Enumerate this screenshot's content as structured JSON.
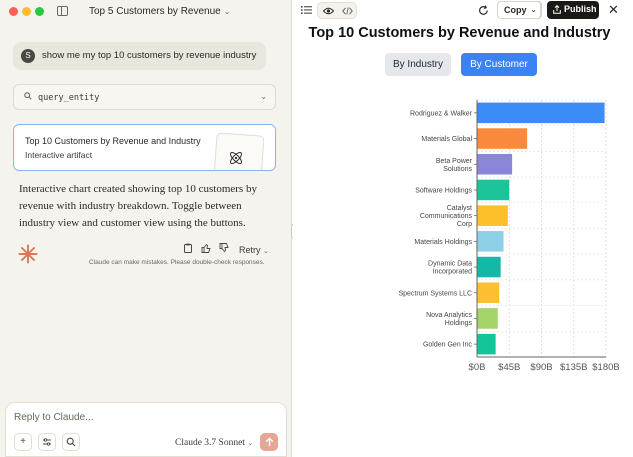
{
  "window": {
    "traffic_lights": [
      "#ff5f57",
      "#febc2e",
      "#28c840"
    ],
    "conversation_title": "Top 5 Customers by Revenue"
  },
  "chat": {
    "user_initial": "S",
    "user_message": "show me my top 10 customers by revenue industry",
    "tool_call": "query_entity",
    "artifact": {
      "title": "Top 10 Customers by Revenue and Industry",
      "subtitle": "Interactive artifact"
    },
    "assistant_message": "Interactive chart created showing top 10 customers by revenue with industry breakdown. Toggle between industry view and customer view using the buttons.",
    "retry_label": "Retry",
    "disclaimer": "Claude can make mistakes. Please double-check responses."
  },
  "composer": {
    "placeholder": "Reply to Claude...",
    "model": "Claude 3.7 Sonnet"
  },
  "artifact_panel": {
    "copy_label": "Copy",
    "publish_label": "Publish",
    "title": "Top 10 Customers by Revenue and Industry",
    "toggle": {
      "industry_label": "By Industry",
      "customer_label": "By Customer",
      "active": "customer"
    }
  },
  "colors": {
    "accent": "#3b82f6",
    "send": "#e7a694",
    "claude": "#d97757"
  },
  "chart_data": {
    "type": "bar",
    "orientation": "horizontal",
    "categories": [
      [
        "Rodriguez & Walker"
      ],
      [
        "Materials Global"
      ],
      [
        "Beta Power",
        "Solutions"
      ],
      [
        "Software Holdings"
      ],
      [
        "Catalyst",
        "Communications",
        "Corp"
      ],
      [
        "Materials Holdings"
      ],
      [
        "Dynamic Data",
        "Incorporated"
      ],
      [
        "Spectrum Systems LLC"
      ],
      [
        "Nova Analytics",
        "Holdings"
      ],
      [
        "Golden Gen Inc"
      ]
    ],
    "values": [
      178,
      70,
      49,
      45,
      43,
      37,
      33,
      31,
      29,
      26
    ],
    "colors": [
      "#3b8df5",
      "#f98a3c",
      "#8b87d8",
      "#1cc49a",
      "#fcc02a",
      "#8dd0e6",
      "#14b8a6",
      "#fcbf31",
      "#a4d36a",
      "#14c59a"
    ],
    "xticks": [
      "$0B",
      "$45B",
      "$90B",
      "$135B",
      "$180B"
    ],
    "xlim": [
      0,
      180
    ],
    "grid": true
  }
}
